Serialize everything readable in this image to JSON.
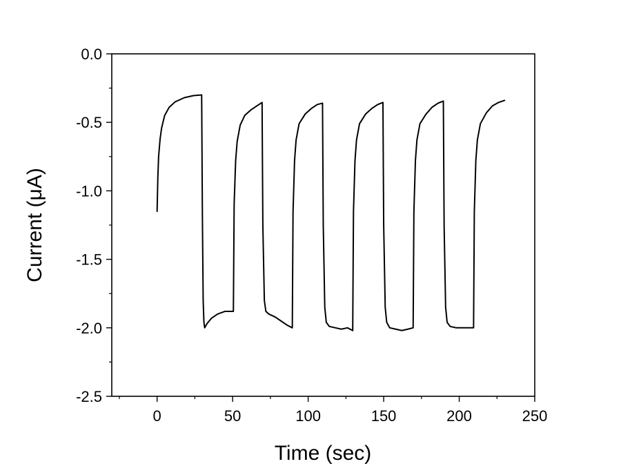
{
  "chart_data": {
    "type": "line",
    "title": "",
    "xlabel": "Time (sec)",
    "ylabel": "Current (μA)",
    "xlim": [
      -30,
      250
    ],
    "ylim": [
      -2.5,
      0.0
    ],
    "x_ticks": [
      0,
      50,
      100,
      150,
      200,
      250
    ],
    "x_tick_labels": [
      "0",
      "50",
      "100",
      "150",
      "200",
      "250"
    ],
    "y_ticks": [
      0.0,
      -0.5,
      -1.0,
      -1.5,
      -2.0,
      -2.5
    ],
    "y_tick_labels": [
      "0.0",
      "-0.5",
      "-1.0",
      "-1.5",
      "-2.0",
      "-2.5"
    ],
    "grid": false,
    "legend": "none",
    "line_color": "#000000",
    "series": [
      {
        "x": [
          0,
          0.5,
          1,
          2,
          3,
          5,
          8,
          12,
          18,
          24,
          29.5,
          30,
          30.5,
          31,
          31.5,
          33,
          36,
          40,
          45,
          50.5,
          51,
          52,
          53,
          55,
          58,
          62,
          66,
          69.5,
          70,
          71,
          72,
          74,
          78,
          82,
          86,
          89.5,
          90,
          91,
          92,
          94,
          98,
          102,
          106,
          109.5,
          110,
          111,
          112,
          114,
          118,
          122,
          126,
          129.5,
          130,
          131,
          132,
          134,
          138,
          142,
          146,
          149.5,
          150,
          151,
          152,
          154,
          158,
          162,
          166,
          169.5,
          170,
          171,
          172,
          174,
          178,
          182,
          186,
          189.5,
          190,
          191,
          192,
          194,
          198,
          202,
          206,
          209.5,
          210,
          211,
          212,
          214,
          218,
          222,
          226,
          230
        ],
        "y": [
          -1.15,
          -0.9,
          -0.75,
          -0.62,
          -0.54,
          -0.45,
          -0.39,
          -0.35,
          -0.32,
          -0.305,
          -0.3,
          -1.2,
          -1.8,
          -1.96,
          -2.0,
          -1.97,
          -1.93,
          -1.9,
          -1.88,
          -1.88,
          -1.1,
          -0.78,
          -0.64,
          -0.52,
          -0.45,
          -0.41,
          -0.38,
          -0.355,
          -1.25,
          -1.8,
          -1.88,
          -1.9,
          -1.92,
          -1.95,
          -1.98,
          -2.0,
          -1.15,
          -0.78,
          -0.63,
          -0.51,
          -0.44,
          -0.4,
          -0.37,
          -0.36,
          -1.25,
          -1.85,
          -1.96,
          -1.99,
          -2.0,
          -2.01,
          -2.0,
          -2.02,
          -1.15,
          -0.78,
          -0.63,
          -0.51,
          -0.44,
          -0.4,
          -0.37,
          -0.355,
          -1.25,
          -1.85,
          -1.96,
          -2.0,
          -2.01,
          -2.02,
          -2.01,
          -2.0,
          -1.15,
          -0.78,
          -0.63,
          -0.51,
          -0.44,
          -0.39,
          -0.36,
          -0.345,
          -1.25,
          -1.85,
          -1.96,
          -1.99,
          -2.0,
          -2.0,
          -2.0,
          -2.0,
          -1.15,
          -0.78,
          -0.63,
          -0.51,
          -0.43,
          -0.38,
          -0.355,
          -0.34
        ]
      }
    ]
  }
}
